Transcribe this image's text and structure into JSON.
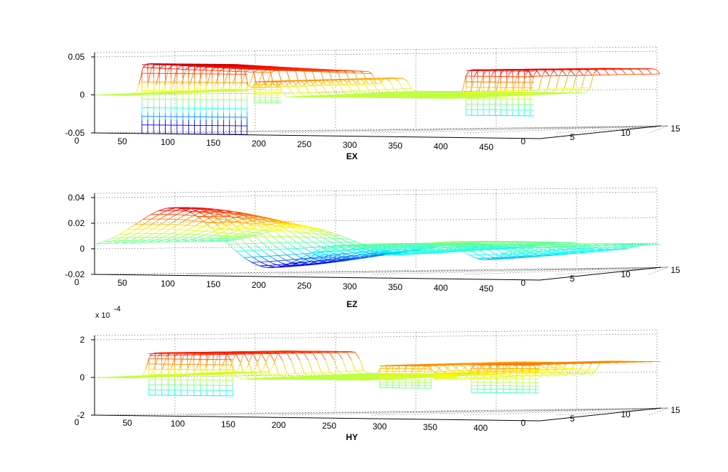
{
  "chart_data": [
    {
      "type": "mesh3d",
      "title": "EX",
      "zlim": [
        -0.05,
        0.05
      ],
      "z_tick_labels": [
        "0.05",
        "0",
        "-0.05"
      ],
      "x_tick_labels": [
        "0",
        "50",
        "100",
        "150",
        "200",
        "250",
        "300",
        "350",
        "400",
        "450"
      ],
      "y_tick_labels": [
        "0",
        "5",
        "10",
        "15"
      ],
      "scale_label": "",
      "colormap": [
        "#00008f",
        "#0000ff",
        "#00ffff",
        "#7fff7f",
        "#ffff00",
        "#ff7f00",
        "#ff0000",
        "#800000"
      ],
      "bumps": [
        {
          "x": [
            65,
            175
          ],
          "z": 0.042,
          "tilt": -0.012,
          "bottom": -0.05
        },
        {
          "x": [
            180,
            210
          ],
          "z": 0.02,
          "tilt": 0.0,
          "bottom": -0.008
        },
        {
          "x": [
            398,
            470
          ],
          "z": 0.038,
          "tilt": 0.0,
          "bottom": -0.022
        }
      ]
    },
    {
      "type": "mesh3d",
      "title": "EZ",
      "zlim": [
        -0.02,
        0.04
      ],
      "z_tick_labels": [
        "0.04",
        "0.02",
        "0",
        "-0.02"
      ],
      "x_tick_labels": [
        "0",
        "50",
        "100",
        "150",
        "200",
        "250",
        "300",
        "350",
        "400",
        "450"
      ],
      "y_tick_labels": [
        "0",
        "5",
        "10",
        "15"
      ],
      "scale_label": "",
      "colormap": [
        "#00008f",
        "#0000ff",
        "#00ffff",
        "#7fff7f",
        "#ffff00",
        "#ff7f00",
        "#ff0000",
        "#800000"
      ],
      "waves": [
        {
          "center": 100,
          "width": 55,
          "amp": 0.033
        },
        {
          "center": 195,
          "width": 45,
          "amp": -0.015
        },
        {
          "center": 270,
          "width": 40,
          "amp": 0.006
        },
        {
          "center": 330,
          "width": 35,
          "amp": -0.006
        },
        {
          "center": 375,
          "width": 40,
          "amp": 0.011
        },
        {
          "center": 420,
          "width": 35,
          "amp": -0.012
        },
        {
          "center": 455,
          "width": 35,
          "amp": 0.009
        }
      ]
    },
    {
      "type": "mesh3d",
      "title": "HY",
      "zlim": [
        -2,
        2
      ],
      "z_tick_labels": [
        "2",
        "0",
        "-2"
      ],
      "x_tick_labels": [
        "0",
        "50",
        "100",
        "150",
        "200",
        "250",
        "300",
        "350",
        "400"
      ],
      "y_tick_labels": [
        "0",
        "5",
        "10",
        "15"
      ],
      "scale_label": "x 10",
      "scale_exponent": "-4",
      "colormap": [
        "#00008f",
        "#0000ff",
        "#00ffff",
        "#7fff7f",
        "#ffff00",
        "#ff7f00",
        "#ff0000",
        "#800000"
      ],
      "bumps": [
        {
          "x": [
            65,
            145
          ],
          "z": 1.35,
          "tilt": 0.0,
          "bottom": -0.9
        },
        {
          "x": [
            280,
            330
          ],
          "z": 0.8,
          "tilt": 0.0,
          "bottom": -0.4
        },
        {
          "x": [
            330,
            355
          ],
          "z": 0.4,
          "tilt": 0.0,
          "bottom": 0.1
        },
        {
          "x": [
            365,
            430
          ],
          "z": 0.9,
          "tilt": 0.0,
          "bottom": -0.6
        }
      ]
    }
  ]
}
